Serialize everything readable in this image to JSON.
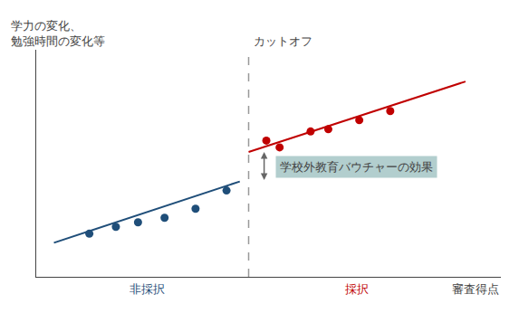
{
  "chart_data": {
    "type": "scatter",
    "xlabel": "審査得点",
    "ylabel": [
      "学力の変化、",
      "勉強時間の変化等"
    ],
    "xlim": [
      0.0,
      1.05
    ],
    "ylim": [
      0.0,
      1.0
    ],
    "xticks": [],
    "yticks": [],
    "tick_labels": false,
    "grid": false,
    "series": [
      {
        "name": "非採択",
        "color": "#1f4e79",
        "x": [
          0.12,
          0.18,
          0.23,
          0.29,
          0.36,
          0.43
        ],
        "values": [
          0.19,
          0.22,
          0.24,
          0.26,
          0.3,
          0.38
        ],
        "fit": {
          "x": [
            0.04,
            0.46
          ],
          "values": [
            0.15,
            0.42
          ]
        }
      },
      {
        "name": "採択",
        "color": "#c00000",
        "x": [
          0.52,
          0.55,
          0.62,
          0.66,
          0.73,
          0.8
        ],
        "values": [
          0.6,
          0.57,
          0.64,
          0.65,
          0.69,
          0.73
        ],
        "fit": {
          "x": [
            0.48,
            0.97
          ],
          "values": [
            0.55,
            0.86
          ]
        }
      }
    ],
    "cutoff": {
      "x": 0.48,
      "label": "カットオフ",
      "color": "#999999",
      "line_style": "dashed"
    },
    "effect": {
      "x": 0.515,
      "from": 0.42,
      "to": 0.55,
      "label": "学校外教育バウチャーの効果",
      "color": "#b2cece"
    }
  }
}
